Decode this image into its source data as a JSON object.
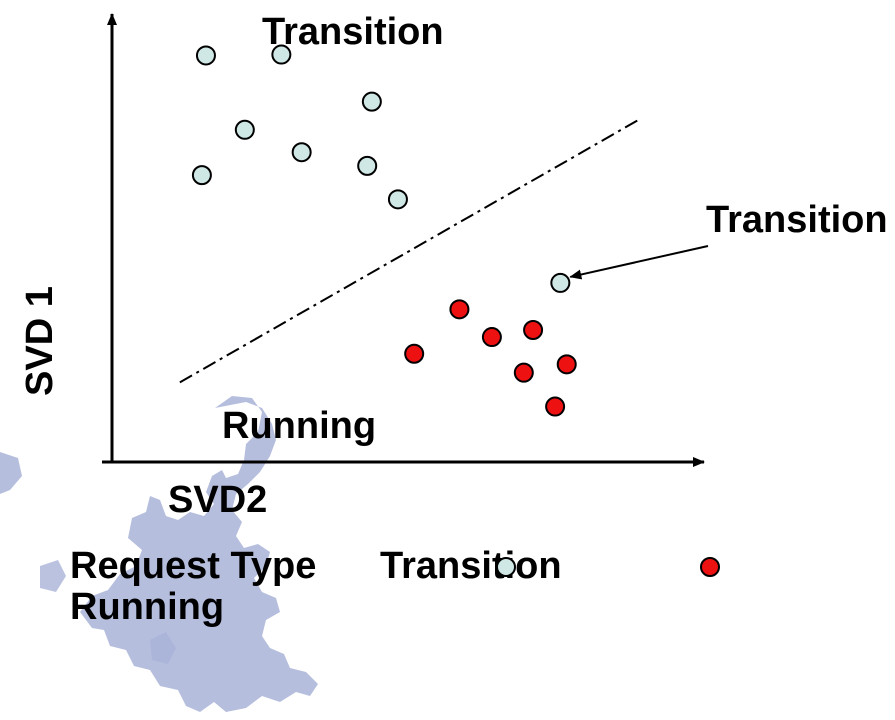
{
  "colors": {
    "transition": "#cfe8e6",
    "running": "#ee1111",
    "outline": "#000000",
    "map": "#a9b3d8"
  },
  "decoration": {
    "icon": "europe-map-icon"
  },
  "chart_data": {
    "type": "scatter",
    "xlabel": "SVD2",
    "ylabel": "SVD 1",
    "xlim": [
      0,
      10
    ],
    "ylim": [
      0,
      10
    ],
    "grid": false,
    "series": [
      {
        "name": "Transition",
        "color_key": "transition",
        "points": [
          {
            "x": 1.62,
            "y": 9.24
          },
          {
            "x": 2.92,
            "y": 9.26
          },
          {
            "x": 4.48,
            "y": 8.19
          },
          {
            "x": 2.29,
            "y": 7.55
          },
          {
            "x": 3.27,
            "y": 7.04
          },
          {
            "x": 4.4,
            "y": 6.73
          },
          {
            "x": 1.55,
            "y": 6.52
          },
          {
            "x": 4.93,
            "y": 5.97
          },
          {
            "x": 7.73,
            "y": 4.07
          }
        ]
      },
      {
        "name": "Running",
        "color_key": "running",
        "points": [
          {
            "x": 5.99,
            "y": 3.47
          },
          {
            "x": 6.55,
            "y": 2.84
          },
          {
            "x": 7.26,
            "y": 3.0
          },
          {
            "x": 5.21,
            "y": 2.46
          },
          {
            "x": 7.84,
            "y": 2.22
          },
          {
            "x": 7.1,
            "y": 2.03
          },
          {
            "x": 7.64,
            "y": 1.26
          }
        ]
      }
    ],
    "separator": {
      "from": {
        "x": 1.17,
        "y": 1.81
      },
      "to": {
        "x": 9.07,
        "y": 7.77
      }
    },
    "annotations": [
      {
        "text": "Transition"
      },
      {
        "text": "Transition",
        "arrow_to": {
          "x": 7.73,
          "y": 4.07
        }
      },
      {
        "text": "Running"
      }
    ],
    "legend": {
      "title": "Request Type",
      "entries": [
        {
          "label": "Transition",
          "color_key": "transition"
        },
        {
          "label": "Running",
          "color_key": "running"
        }
      ]
    }
  }
}
